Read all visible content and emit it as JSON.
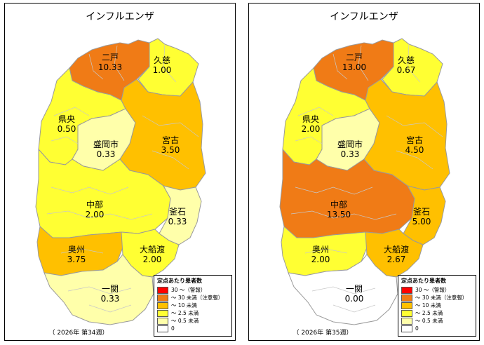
{
  "colors": {
    "c30plus": "#ff0000",
    "c10to30": "#f07b16",
    "c2_5to10": "#ffc000",
    "c0_5to2_5": "#ffff33",
    "c0to0_5": "#ffffaa",
    "c0": "#ffffff"
  },
  "maps": [
    {
      "title": "インフルエンザ",
      "week": "（ 2026年 第34週）",
      "legend": {
        "title": "定点あたり患者数",
        "items": [
          {
            "label": "30 ～（警報）",
            "color": "#ff0000"
          },
          {
            "label": "～ 30 未満（注意報）",
            "color": "#f07b16"
          },
          {
            "label": "～ 10 未満",
            "color": "#ffc000"
          },
          {
            "label": "～ 2.5 未満",
            "color": "#ffff33"
          },
          {
            "label": "～ 0.5 未満",
            "color": "#ffffaa"
          },
          {
            "label": "0",
            "color": "#ffffff"
          }
        ]
      },
      "regions": [
        {
          "name": "二戸",
          "value": "10.33",
          "color": "#f07b16"
        },
        {
          "name": "久慈",
          "value": "1.00",
          "color": "#ffff33"
        },
        {
          "name": "県央",
          "value": "0.50",
          "color": "#ffff33"
        },
        {
          "name": "盛岡市",
          "value": "0.33",
          "color": "#ffffaa"
        },
        {
          "name": "宮古",
          "value": "3.50",
          "color": "#ffc000"
        },
        {
          "name": "中部",
          "value": "2.00",
          "color": "#ffff33"
        },
        {
          "name": "釜石",
          "value": "0.33",
          "color": "#ffffaa"
        },
        {
          "name": "奥州",
          "value": "3.75",
          "color": "#ffc000"
        },
        {
          "name": "大船渡",
          "value": "2.00",
          "color": "#ffff33"
        },
        {
          "name": "一関",
          "value": "0.33",
          "color": "#ffffaa"
        }
      ]
    },
    {
      "title": "インフルエンザ",
      "week": "（ 2026年 第35週）",
      "legend": {
        "title": "定点あたり患者数",
        "items": [
          {
            "label": "30 ～（警報）",
            "color": "#ff0000"
          },
          {
            "label": "～ 30 未満（注意報）",
            "color": "#f07b16"
          },
          {
            "label": "～ 10 未満",
            "color": "#ffc000"
          },
          {
            "label": "～ 2.5 未満",
            "color": "#ffff33"
          },
          {
            "label": "～ 0.5 未満",
            "color": "#ffffaa"
          },
          {
            "label": "0",
            "color": "#ffffff"
          }
        ]
      },
      "regions": [
        {
          "name": "二戸",
          "value": "13.00",
          "color": "#f07b16"
        },
        {
          "name": "久慈",
          "value": "0.67",
          "color": "#ffff33"
        },
        {
          "name": "県央",
          "value": "2.00",
          "color": "#ffff33"
        },
        {
          "name": "盛岡市",
          "value": "0.33",
          "color": "#ffffaa"
        },
        {
          "name": "宮古",
          "value": "4.50",
          "color": "#ffc000"
        },
        {
          "name": "中部",
          "value": "13.50",
          "color": "#f07b16"
        },
        {
          "name": "釜石",
          "value": "5.00",
          "color": "#ffc000"
        },
        {
          "name": "奥州",
          "value": "2.00",
          "color": "#ffff33"
        },
        {
          "name": "大船渡",
          "value": "2.67",
          "color": "#ffc000"
        },
        {
          "name": "一関",
          "value": "0.00",
          "color": "#ffffff"
        }
      ]
    }
  ]
}
